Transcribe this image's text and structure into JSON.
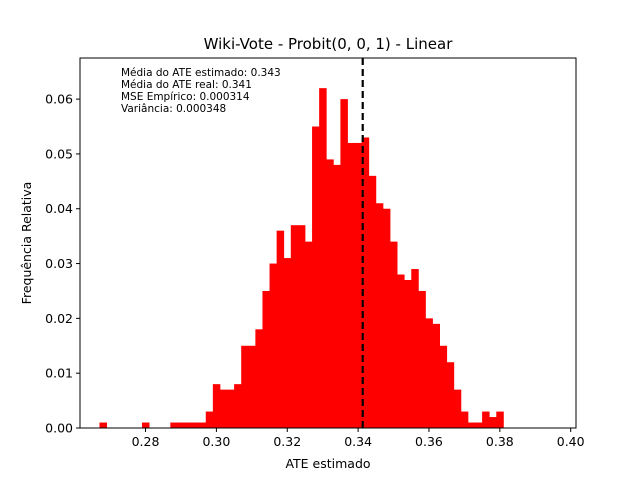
{
  "chart_data": {
    "type": "histogram",
    "title": "Wiki-Vote - Probit(0, 0, 1) - Linear",
    "xlabel": "ATE estimado",
    "ylabel": "Frequência Relativa",
    "xlim": [
      0.2615,
      0.4015
    ],
    "ylim": [
      0.0,
      0.0675
    ],
    "x_ticks": [
      0.28,
      0.3,
      0.32,
      0.34,
      0.36,
      0.38,
      0.4
    ],
    "x_tick_labels": [
      "0.28",
      "0.30",
      "0.32",
      "0.34",
      "0.36",
      "0.38",
      "0.40"
    ],
    "y_ticks": [
      0.0,
      0.01,
      0.02,
      0.03,
      0.04,
      0.05,
      0.06
    ],
    "y_tick_labels": [
      "0.00",
      "0.01",
      "0.02",
      "0.03",
      "0.04",
      "0.05",
      "0.06"
    ],
    "bin_start": 0.267,
    "bin_width": 0.002,
    "relative_frequencies": [
      0.001,
      0.0,
      0.0,
      0.0,
      0.0,
      0.0,
      0.001,
      0.0,
      0.0,
      0.0,
      0.001,
      0.001,
      0.001,
      0.001,
      0.001,
      0.003,
      0.008,
      0.007,
      0.007,
      0.008,
      0.015,
      0.015,
      0.018,
      0.025,
      0.03,
      0.036,
      0.031,
      0.037,
      0.037,
      0.034,
      0.055,
      0.062,
      0.049,
      0.048,
      0.06,
      0.052,
      0.052,
      0.053,
      0.046,
      0.041,
      0.04,
      0.034,
      0.028,
      0.027,
      0.029,
      0.025,
      0.02,
      0.019,
      0.015,
      0.012,
      0.007,
      0.003,
      0.001,
      0.001,
      0.003,
      0.002,
      0.003
    ],
    "bar_color": "#ff0000",
    "reference_line": {
      "x": 0.3413,
      "style": "dashed",
      "color": "#000000"
    },
    "annotations": [
      "Média do ATE estimado: 0.343",
      "Média do ATE real: 0.341",
      "MSE Empírico: 0.000314",
      "Variância: 0.000348"
    ],
    "grid": false
  }
}
